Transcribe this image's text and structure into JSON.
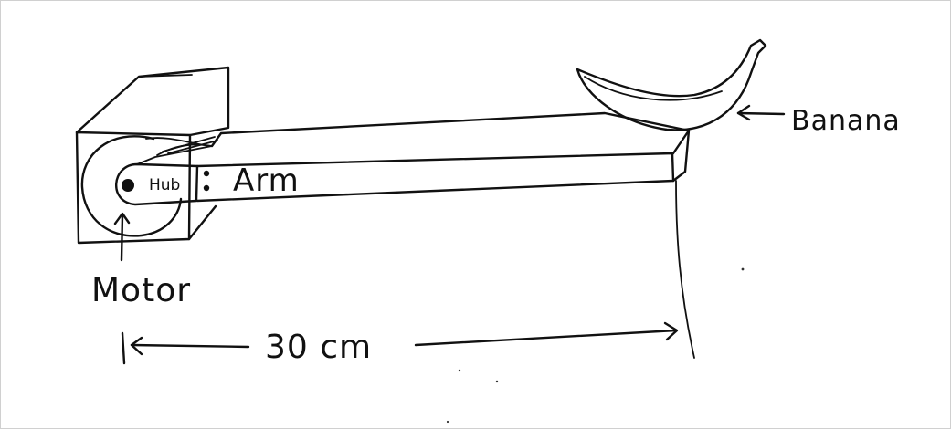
{
  "labels": {
    "hub": "Hub",
    "arm": "Arm",
    "motor": "Motor",
    "banana": "Banana",
    "distance": "30 cm"
  }
}
